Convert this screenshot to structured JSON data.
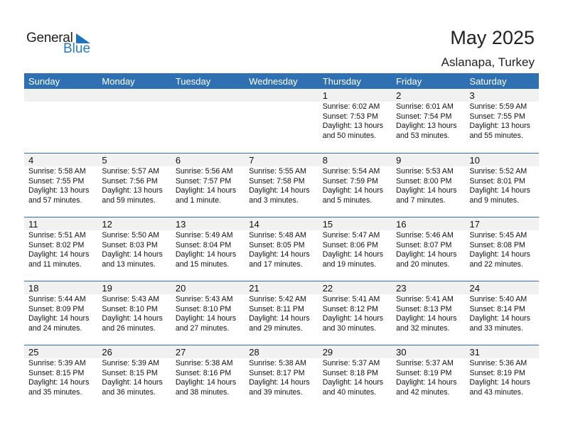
{
  "logo": {
    "text1": "General",
    "text2": "Blue"
  },
  "header": {
    "title": "May 2025",
    "location": "Aslanapa, Turkey"
  },
  "colors": {
    "header_bg": "#2e70b1",
    "date_strip": "#f1f1f1"
  },
  "weekdays": [
    "Sunday",
    "Monday",
    "Tuesday",
    "Wednesday",
    "Thursday",
    "Friday",
    "Saturday"
  ],
  "weeks": [
    [
      null,
      null,
      null,
      null,
      {
        "day": "1",
        "sunrise": "Sunrise: 6:02 AM",
        "sunset": "Sunset: 7:53 PM",
        "daylight1": "Daylight: 13 hours",
        "daylight2": "and 50 minutes."
      },
      {
        "day": "2",
        "sunrise": "Sunrise: 6:01 AM",
        "sunset": "Sunset: 7:54 PM",
        "daylight1": "Daylight: 13 hours",
        "daylight2": "and 53 minutes."
      },
      {
        "day": "3",
        "sunrise": "Sunrise: 5:59 AM",
        "sunset": "Sunset: 7:55 PM",
        "daylight1": "Daylight: 13 hours",
        "daylight2": "and 55 minutes."
      }
    ],
    [
      {
        "day": "4",
        "sunrise": "Sunrise: 5:58 AM",
        "sunset": "Sunset: 7:55 PM",
        "daylight1": "Daylight: 13 hours",
        "daylight2": "and 57 minutes."
      },
      {
        "day": "5",
        "sunrise": "Sunrise: 5:57 AM",
        "sunset": "Sunset: 7:56 PM",
        "daylight1": "Daylight: 13 hours",
        "daylight2": "and 59 minutes."
      },
      {
        "day": "6",
        "sunrise": "Sunrise: 5:56 AM",
        "sunset": "Sunset: 7:57 PM",
        "daylight1": "Daylight: 14 hours",
        "daylight2": "and 1 minute."
      },
      {
        "day": "7",
        "sunrise": "Sunrise: 5:55 AM",
        "sunset": "Sunset: 7:58 PM",
        "daylight1": "Daylight: 14 hours",
        "daylight2": "and 3 minutes."
      },
      {
        "day": "8",
        "sunrise": "Sunrise: 5:54 AM",
        "sunset": "Sunset: 7:59 PM",
        "daylight1": "Daylight: 14 hours",
        "daylight2": "and 5 minutes."
      },
      {
        "day": "9",
        "sunrise": "Sunrise: 5:53 AM",
        "sunset": "Sunset: 8:00 PM",
        "daylight1": "Daylight: 14 hours",
        "daylight2": "and 7 minutes."
      },
      {
        "day": "10",
        "sunrise": "Sunrise: 5:52 AM",
        "sunset": "Sunset: 8:01 PM",
        "daylight1": "Daylight: 14 hours",
        "daylight2": "and 9 minutes."
      }
    ],
    [
      {
        "day": "11",
        "sunrise": "Sunrise: 5:51 AM",
        "sunset": "Sunset: 8:02 PM",
        "daylight1": "Daylight: 14 hours",
        "daylight2": "and 11 minutes."
      },
      {
        "day": "12",
        "sunrise": "Sunrise: 5:50 AM",
        "sunset": "Sunset: 8:03 PM",
        "daylight1": "Daylight: 14 hours",
        "daylight2": "and 13 minutes."
      },
      {
        "day": "13",
        "sunrise": "Sunrise: 5:49 AM",
        "sunset": "Sunset: 8:04 PM",
        "daylight1": "Daylight: 14 hours",
        "daylight2": "and 15 minutes."
      },
      {
        "day": "14",
        "sunrise": "Sunrise: 5:48 AM",
        "sunset": "Sunset: 8:05 PM",
        "daylight1": "Daylight: 14 hours",
        "daylight2": "and 17 minutes."
      },
      {
        "day": "15",
        "sunrise": "Sunrise: 5:47 AM",
        "sunset": "Sunset: 8:06 PM",
        "daylight1": "Daylight: 14 hours",
        "daylight2": "and 19 minutes."
      },
      {
        "day": "16",
        "sunrise": "Sunrise: 5:46 AM",
        "sunset": "Sunset: 8:07 PM",
        "daylight1": "Daylight: 14 hours",
        "daylight2": "and 20 minutes."
      },
      {
        "day": "17",
        "sunrise": "Sunrise: 5:45 AM",
        "sunset": "Sunset: 8:08 PM",
        "daylight1": "Daylight: 14 hours",
        "daylight2": "and 22 minutes."
      }
    ],
    [
      {
        "day": "18",
        "sunrise": "Sunrise: 5:44 AM",
        "sunset": "Sunset: 8:09 PM",
        "daylight1": "Daylight: 14 hours",
        "daylight2": "and 24 minutes."
      },
      {
        "day": "19",
        "sunrise": "Sunrise: 5:43 AM",
        "sunset": "Sunset: 8:10 PM",
        "daylight1": "Daylight: 14 hours",
        "daylight2": "and 26 minutes."
      },
      {
        "day": "20",
        "sunrise": "Sunrise: 5:43 AM",
        "sunset": "Sunset: 8:10 PM",
        "daylight1": "Daylight: 14 hours",
        "daylight2": "and 27 minutes."
      },
      {
        "day": "21",
        "sunrise": "Sunrise: 5:42 AM",
        "sunset": "Sunset: 8:11 PM",
        "daylight1": "Daylight: 14 hours",
        "daylight2": "and 29 minutes."
      },
      {
        "day": "22",
        "sunrise": "Sunrise: 5:41 AM",
        "sunset": "Sunset: 8:12 PM",
        "daylight1": "Daylight: 14 hours",
        "daylight2": "and 30 minutes."
      },
      {
        "day": "23",
        "sunrise": "Sunrise: 5:41 AM",
        "sunset": "Sunset: 8:13 PM",
        "daylight1": "Daylight: 14 hours",
        "daylight2": "and 32 minutes."
      },
      {
        "day": "24",
        "sunrise": "Sunrise: 5:40 AM",
        "sunset": "Sunset: 8:14 PM",
        "daylight1": "Daylight: 14 hours",
        "daylight2": "and 33 minutes."
      }
    ],
    [
      {
        "day": "25",
        "sunrise": "Sunrise: 5:39 AM",
        "sunset": "Sunset: 8:15 PM",
        "daylight1": "Daylight: 14 hours",
        "daylight2": "and 35 minutes."
      },
      {
        "day": "26",
        "sunrise": "Sunrise: 5:39 AM",
        "sunset": "Sunset: 8:15 PM",
        "daylight1": "Daylight: 14 hours",
        "daylight2": "and 36 minutes."
      },
      {
        "day": "27",
        "sunrise": "Sunrise: 5:38 AM",
        "sunset": "Sunset: 8:16 PM",
        "daylight1": "Daylight: 14 hours",
        "daylight2": "and 38 minutes."
      },
      {
        "day": "28",
        "sunrise": "Sunrise: 5:38 AM",
        "sunset": "Sunset: 8:17 PM",
        "daylight1": "Daylight: 14 hours",
        "daylight2": "and 39 minutes."
      },
      {
        "day": "29",
        "sunrise": "Sunrise: 5:37 AM",
        "sunset": "Sunset: 8:18 PM",
        "daylight1": "Daylight: 14 hours",
        "daylight2": "and 40 minutes."
      },
      {
        "day": "30",
        "sunrise": "Sunrise: 5:37 AM",
        "sunset": "Sunset: 8:19 PM",
        "daylight1": "Daylight: 14 hours",
        "daylight2": "and 42 minutes."
      },
      {
        "day": "31",
        "sunrise": "Sunrise: 5:36 AM",
        "sunset": "Sunset: 8:19 PM",
        "daylight1": "Daylight: 14 hours",
        "daylight2": "and 43 minutes."
      }
    ]
  ]
}
